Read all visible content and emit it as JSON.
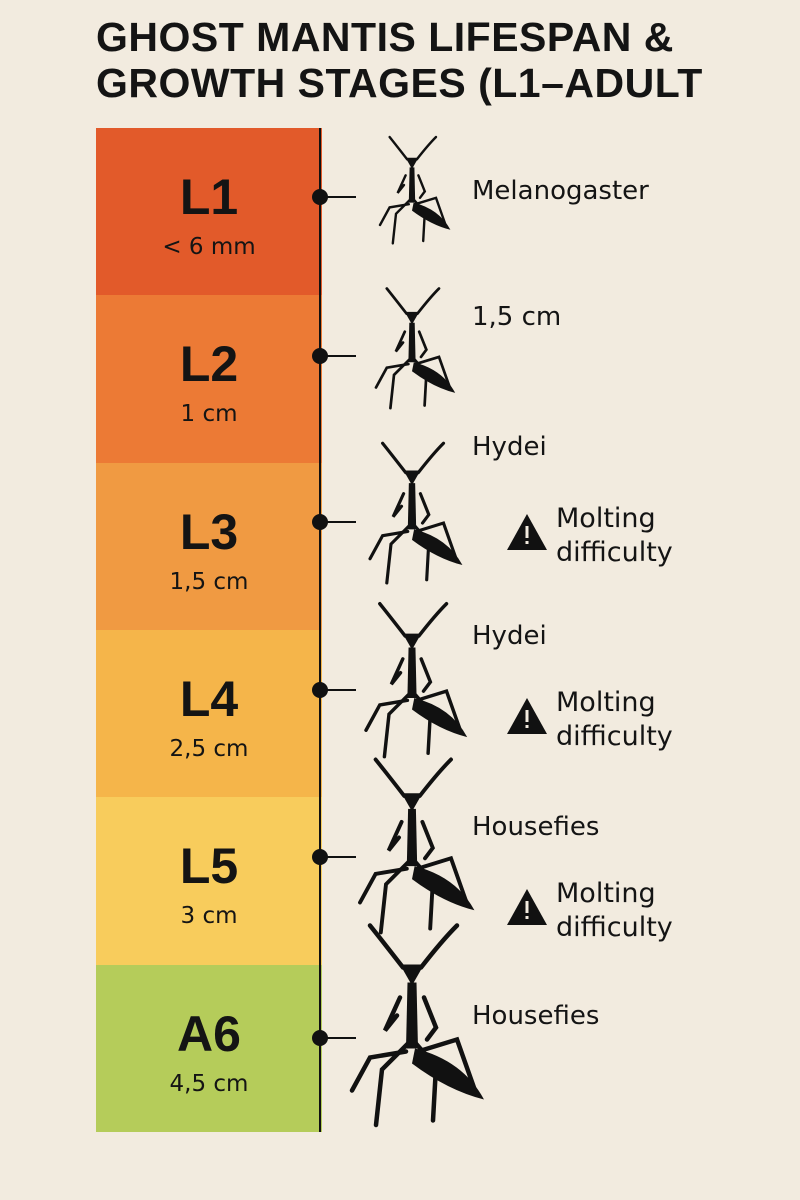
{
  "title": [
    "GHOST MANTIS LIFESPAN &",
    "GROWTH STAGES (L1–ADULT"
  ],
  "stages": [
    {
      "label": "L1",
      "size": "< 6 mm",
      "food": "Melanogaster",
      "color": "#e25a2a"
    },
    {
      "label": "L2",
      "size": "1 cm",
      "food": "1,5 cm",
      "color": "#ec7a35"
    },
    {
      "label": "L3",
      "size": "1,5 cm",
      "food": "Hydei",
      "warning": [
        "Molting",
        "difficulty"
      ],
      "color": "#f09a42"
    },
    {
      "label": "L4",
      "size": "2,5 cm",
      "food": "Hydei",
      "warning": [
        "Molting",
        "difficulty"
      ],
      "color": "#f5b54a"
    },
    {
      "label": "L5",
      "size": "3 cm",
      "food": "Housefies",
      "warning": [
        "Molting",
        "difficulty"
      ],
      "color": "#f8cc5c"
    },
    {
      "label": "A6",
      "size": "4,5 cm",
      "food": "Housefies",
      "color": "#b5cc5a"
    }
  ]
}
